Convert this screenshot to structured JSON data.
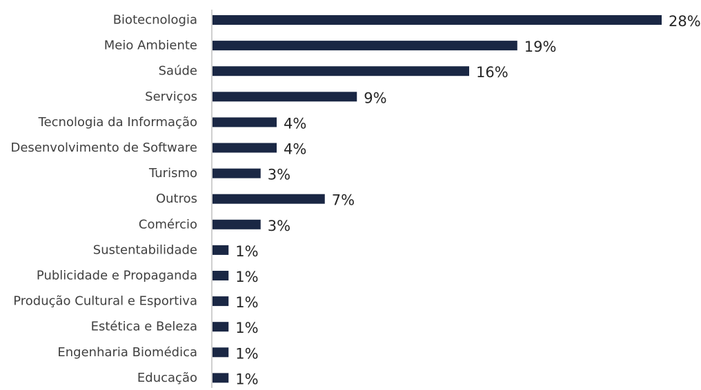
{
  "chart_data": {
    "type": "bar",
    "orientation": "horizontal",
    "title": "",
    "xlabel": "",
    "ylabel": "",
    "bar_color": "#1a2744",
    "grid": false,
    "legend": "none",
    "categories": [
      "Biotecnologia",
      "Meio Ambiente",
      "Saúde",
      "Serviços",
      "Tecnologia da Informação",
      "Desenvolvimento de Software",
      "Turismo",
      "Outros",
      "Comércio",
      "Sustentabilidade",
      "Publicidade e Propaganda",
      "Produção Cultural e Esportiva",
      "Estética e Beleza",
      "Engenharia Biomédica",
      "Educação"
    ],
    "values": [
      28,
      19,
      16,
      9,
      4,
      4,
      3,
      7,
      3,
      1,
      1,
      1,
      1,
      1,
      1
    ],
    "value_labels": [
      "28%",
      "19%",
      "16%",
      "9%",
      "4%",
      "4%",
      "3%",
      "7%",
      "3%",
      "1%",
      "1%",
      "1%",
      "1%",
      "1%",
      "1%"
    ]
  }
}
